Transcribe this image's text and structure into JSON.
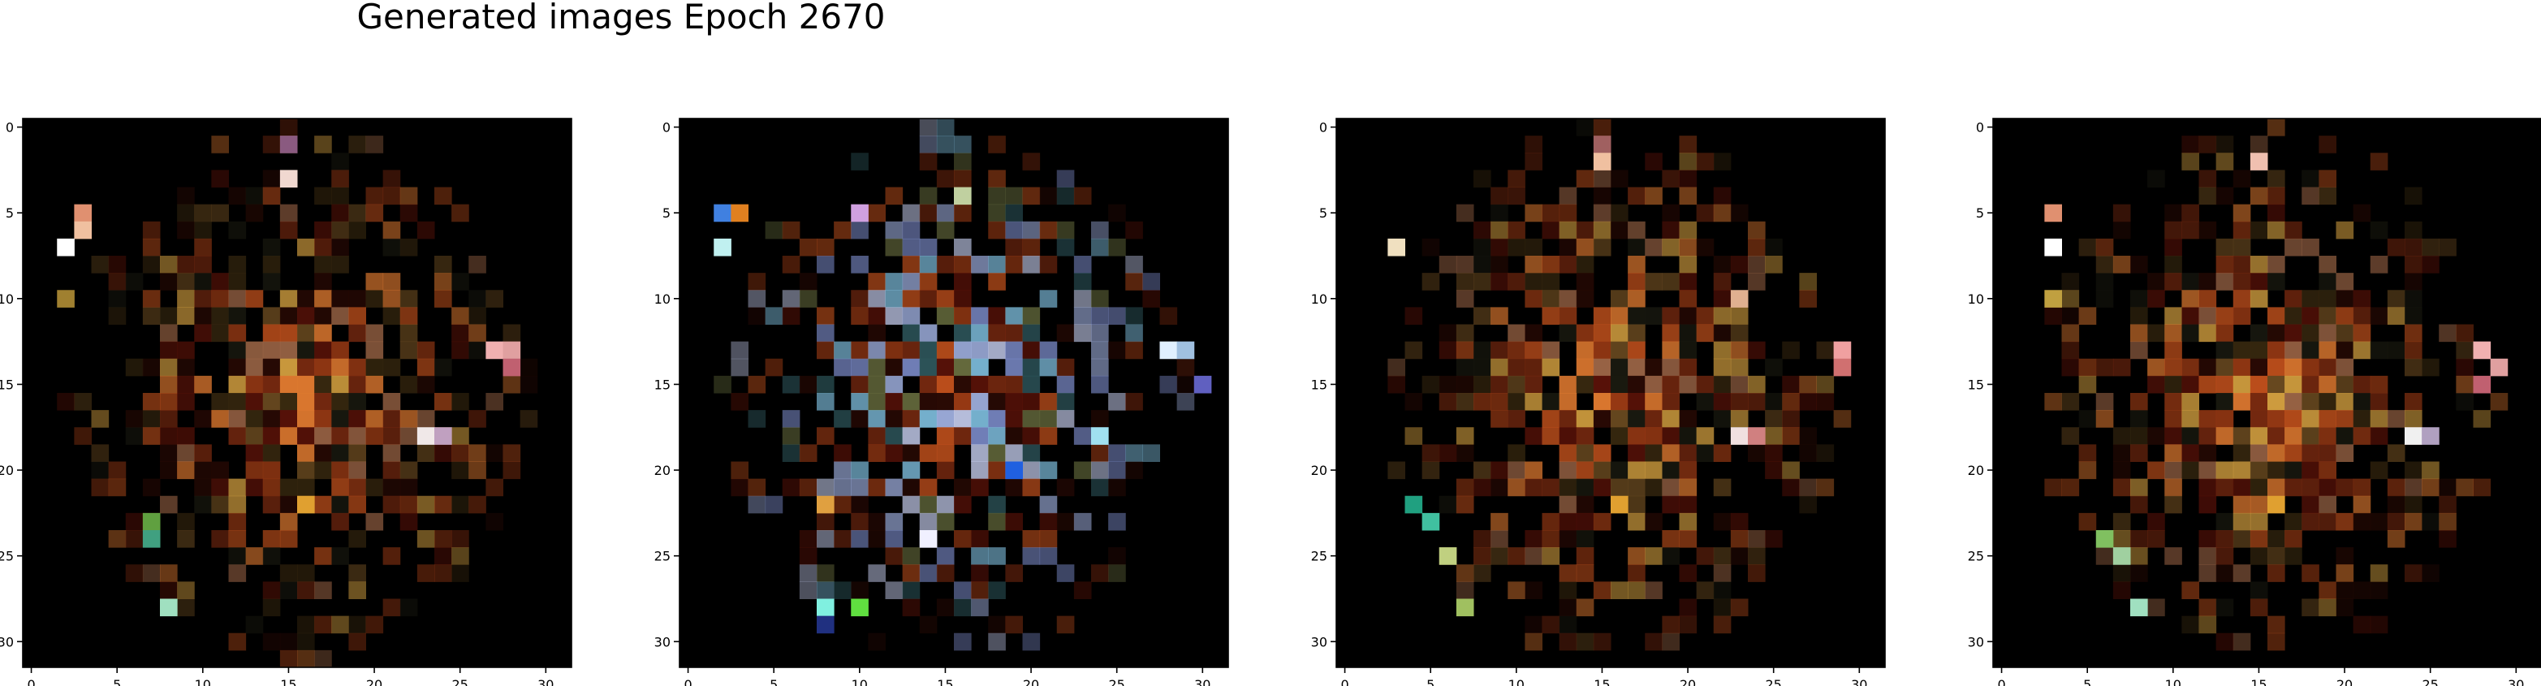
{
  "figure": {
    "title": "Generated images Epoch 2670"
  },
  "chart_data": [
    {
      "type": "heatmap",
      "title": "",
      "xlabel": "",
      "ylabel": "",
      "grid_size": [
        32,
        32
      ],
      "xlim": [
        -0.5,
        31.5
      ],
      "ylim": [
        31.5,
        -0.5
      ],
      "xticks": [
        0,
        5,
        10,
        15,
        20,
        25,
        30
      ],
      "yticks": [
        0,
        5,
        10,
        15,
        20,
        25,
        30
      ],
      "background": "#000000",
      "palette": [
        "#5a1208",
        "#7a2a10",
        "#9a3a14",
        "#c0501c",
        "#e07a30",
        "#d4a040",
        "#3a2a10",
        "#2a0a04",
        "#1a1a10",
        "#6a4a20",
        "#a06848"
      ],
      "accents": [
        {
          "row": 1,
          "col": 15,
          "color": "#8a5a80"
        },
        {
          "row": 3,
          "col": 15,
          "color": "#f0d8d0"
        },
        {
          "row": 5,
          "col": 3,
          "color": "#e09070"
        },
        {
          "row": 6,
          "col": 3,
          "color": "#f0c0a0"
        },
        {
          "row": 7,
          "col": 2,
          "color": "#ffffff"
        },
        {
          "row": 10,
          "col": 2,
          "color": "#a08030"
        },
        {
          "row": 13,
          "col": 27,
          "color": "#f0b0b0"
        },
        {
          "row": 13,
          "col": 28,
          "color": "#e0a0a0"
        },
        {
          "row": 14,
          "col": 28,
          "color": "#c06070"
        },
        {
          "row": 18,
          "col": 23,
          "color": "#f0e8e8"
        },
        {
          "row": 18,
          "col": 24,
          "color": "#c0a0c0"
        },
        {
          "row": 23,
          "col": 7,
          "color": "#60a040"
        },
        {
          "row": 24,
          "col": 7,
          "color": "#40a080"
        },
        {
          "row": 28,
          "col": 8,
          "color": "#a0e0c0"
        },
        {
          "row": 22,
          "col": 16,
          "color": "#e0a030"
        }
      ]
    },
    {
      "type": "heatmap",
      "title": "",
      "xlabel": "",
      "ylabel": "",
      "grid_size": [
        32,
        32
      ],
      "xlim": [
        -0.5,
        31.5
      ],
      "ylim": [
        31.5,
        -0.5
      ],
      "xticks": [
        0,
        5,
        10,
        15,
        20,
        25,
        30
      ],
      "yticks": [
        0,
        5,
        10,
        15,
        20,
        25,
        30
      ],
      "background": "#000000",
      "palette": [
        "#5a1208",
        "#7a2a10",
        "#9a3a14",
        "#c0501c",
        "#8090d0",
        "#a0b0e0",
        "#c0c8e8",
        "#6a7040",
        "#305a60",
        "#2a0a04",
        "#80c0e0"
      ],
      "accents": [
        {
          "row": 5,
          "col": 2,
          "color": "#4080e0"
        },
        {
          "row": 5,
          "col": 3,
          "color": "#e08020"
        },
        {
          "row": 7,
          "col": 2,
          "color": "#c0f0f0"
        },
        {
          "row": 5,
          "col": 10,
          "color": "#d0a0e0"
        },
        {
          "row": 4,
          "col": 16,
          "color": "#c0d0a0"
        },
        {
          "row": 13,
          "col": 28,
          "color": "#e0f0ff"
        },
        {
          "row": 13,
          "col": 29,
          "color": "#a0c0e0"
        },
        {
          "row": 15,
          "col": 30,
          "color": "#6060c0"
        },
        {
          "row": 18,
          "col": 24,
          "color": "#a0e0f0"
        },
        {
          "row": 20,
          "col": 19,
          "color": "#2060e0"
        },
        {
          "row": 28,
          "col": 8,
          "color": "#80f0e0"
        },
        {
          "row": 29,
          "col": 8,
          "color": "#203080"
        },
        {
          "row": 28,
          "col": 10,
          "color": "#60e040"
        },
        {
          "row": 22,
          "col": 8,
          "color": "#e0a040"
        },
        {
          "row": 24,
          "col": 14,
          "color": "#f0f0ff"
        }
      ]
    },
    {
      "type": "heatmap",
      "title": "",
      "xlabel": "",
      "ylabel": "",
      "grid_size": [
        32,
        32
      ],
      "xlim": [
        -0.5,
        31.5
      ],
      "ylim": [
        31.5,
        -0.5
      ],
      "xticks": [
        0,
        5,
        10,
        15,
        20,
        25,
        30
      ],
      "yticks": [
        0,
        5,
        10,
        15,
        20,
        25,
        30
      ],
      "background": "#000000",
      "palette": [
        "#5a1208",
        "#7a2a10",
        "#9a3a14",
        "#c0501c",
        "#e07a30",
        "#d4a040",
        "#3a2a10",
        "#2a0a04",
        "#1a1a10",
        "#6a4a20",
        "#a06848"
      ],
      "accents": [
        {
          "row": 1,
          "col": 15,
          "color": "#a06060"
        },
        {
          "row": 2,
          "col": 15,
          "color": "#f0c0a0"
        },
        {
          "row": 7,
          "col": 3,
          "color": "#f0e0c0"
        },
        {
          "row": 10,
          "col": 23,
          "color": "#e0b090"
        },
        {
          "row": 13,
          "col": 29,
          "color": "#f0a0a0"
        },
        {
          "row": 14,
          "col": 29,
          "color": "#d07070"
        },
        {
          "row": 18,
          "col": 23,
          "color": "#f0e0e0"
        },
        {
          "row": 18,
          "col": 24,
          "color": "#d08080"
        },
        {
          "row": 22,
          "col": 4,
          "color": "#20a080"
        },
        {
          "row": 23,
          "col": 5,
          "color": "#40c0a0"
        },
        {
          "row": 25,
          "col": 6,
          "color": "#c0d080"
        },
        {
          "row": 28,
          "col": 7,
          "color": "#a0c060"
        },
        {
          "row": 22,
          "col": 16,
          "color": "#e0a030"
        }
      ]
    },
    {
      "type": "heatmap",
      "title": "",
      "xlabel": "",
      "ylabel": "",
      "grid_size": [
        32,
        32
      ],
      "xlim": [
        -0.5,
        31.5
      ],
      "ylim": [
        31.5,
        -0.5
      ],
      "xticks": [
        0,
        5,
        10,
        15,
        20,
        25,
        30
      ],
      "yticks": [
        0,
        5,
        10,
        15,
        20,
        25,
        30
      ],
      "background": "#000000",
      "palette": [
        "#5a1208",
        "#7a2a10",
        "#9a3a14",
        "#c0501c",
        "#e07a30",
        "#d4a040",
        "#3a2a10",
        "#2a0a04",
        "#1a1a10",
        "#6a4a20",
        "#a06848"
      ],
      "accents": [
        {
          "row": 2,
          "col": 15,
          "color": "#f0c0b0"
        },
        {
          "row": 5,
          "col": 3,
          "color": "#e09070"
        },
        {
          "row": 7,
          "col": 3,
          "color": "#ffffff"
        },
        {
          "row": 10,
          "col": 3,
          "color": "#c0a040"
        },
        {
          "row": 13,
          "col": 28,
          "color": "#f0b0b0"
        },
        {
          "row": 14,
          "col": 29,
          "color": "#e0a0a0"
        },
        {
          "row": 15,
          "col": 28,
          "color": "#c06070"
        },
        {
          "row": 18,
          "col": 24,
          "color": "#f0f0f0"
        },
        {
          "row": 18,
          "col": 25,
          "color": "#b0a0c0"
        },
        {
          "row": 24,
          "col": 6,
          "color": "#80c060"
        },
        {
          "row": 25,
          "col": 7,
          "color": "#a0d0a0"
        },
        {
          "row": 28,
          "col": 8,
          "color": "#a0e0c0"
        },
        {
          "row": 22,
          "col": 16,
          "color": "#e0a030"
        }
      ]
    }
  ]
}
